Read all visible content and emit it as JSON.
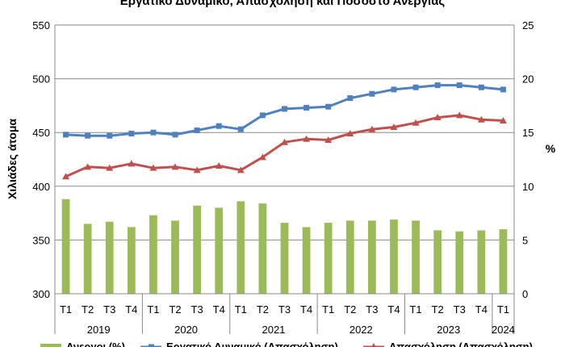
{
  "chart_data": {
    "type": "bar+line",
    "title": "Εργατικό Δυναμικό, Απασχόληση και Ποσοστό Ανεργίας",
    "ylabel_left": "Χιλιάδες άτομα",
    "ylabel_right": "%",
    "ylim_left": [
      300,
      550
    ],
    "ylim_right": [
      0,
      25
    ],
    "yticks_left": [
      "300",
      "350",
      "400",
      "450",
      "500",
      "550"
    ],
    "yticks_right": [
      "0",
      "5",
      "10",
      "15",
      "20",
      "25"
    ],
    "categories": [
      "T1",
      "T2",
      "T3",
      "T4",
      "T1",
      "T2",
      "T3",
      "T4",
      "T1",
      "T2",
      "T3",
      "T4",
      "T1",
      "T2",
      "T3",
      "T4",
      "T1",
      "T2",
      "T3",
      "T4",
      "T1"
    ],
    "years": [
      {
        "label": "2019",
        "count": 4
      },
      {
        "label": "2020",
        "count": 4
      },
      {
        "label": "2021",
        "count": 4
      },
      {
        "label": "2022",
        "count": 4
      },
      {
        "label": "2023",
        "count": 4
      },
      {
        "label": "2024",
        "count": 1
      }
    ],
    "series": [
      {
        "name": "Ανεργοι (%)",
        "type": "bar",
        "axis": "right",
        "color": "#9bbb59",
        "values": [
          8.8,
          6.5,
          6.7,
          6.2,
          7.3,
          6.8,
          8.2,
          8.0,
          8.6,
          8.4,
          6.6,
          6.2,
          6.6,
          6.8,
          6.8,
          6.9,
          6.8,
          5.9,
          5.8,
          5.9,
          6.0
        ]
      },
      {
        "name": "Εργατικό Δυναμικό (Απασχόληση)",
        "type": "line",
        "axis": "left",
        "color": "#4f81bd",
        "marker": "square",
        "values": [
          448,
          447,
          447,
          449,
          450,
          448,
          452,
          456,
          453,
          466,
          472,
          473,
          474,
          482,
          486,
          490,
          492,
          494,
          494,
          492,
          490
        ]
      },
      {
        "name": "Απασχόληση (Απασχόληση)",
        "type": "line",
        "axis": "left",
        "color": "#c0504d",
        "marker": "triangle",
        "values": [
          409,
          418,
          417,
          421,
          417,
          418,
          415,
          419,
          415,
          427,
          441,
          444,
          443,
          449,
          453,
          455,
          459,
          464,
          466,
          462,
          461
        ]
      }
    ],
    "legend_position": "bottom",
    "legend_labels": [
      "Ανεργοι (%)",
      "Εργατικό Δυναμικό (Απασχόληση)",
      "Απασχόληση (Απασχόληση)"
    ]
  }
}
